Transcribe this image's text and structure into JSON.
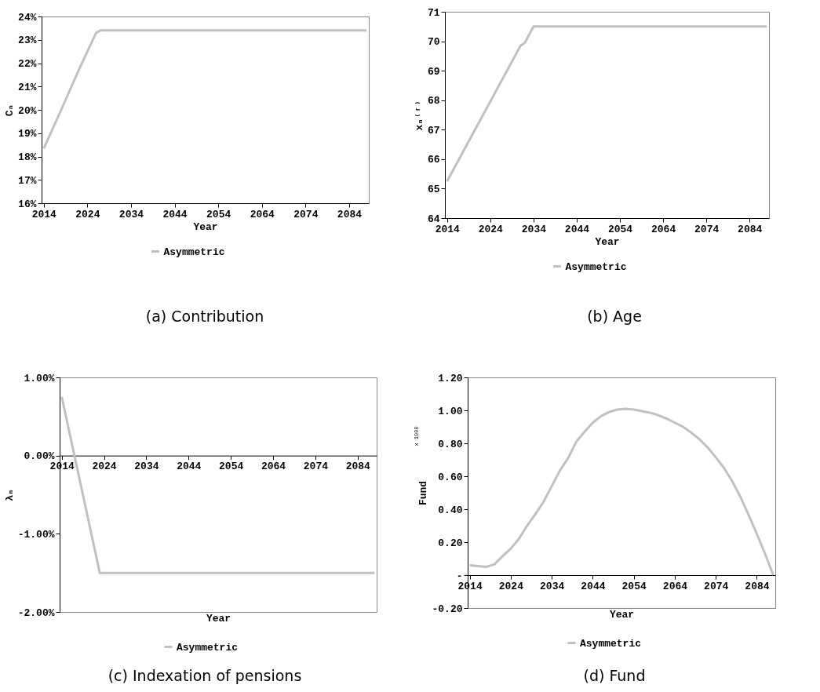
{
  "chart_data": [
    {
      "type": "line",
      "title": "(a) Contribution",
      "xlabel": "Year",
      "ylabel": "Cₙ",
      "legend": "bottom",
      "grid": false,
      "marker": "none",
      "line_style": "solid",
      "xlim": [
        2013.5,
        2088.5
      ],
      "xticks": [
        2014,
        2024,
        2034,
        2044,
        2054,
        2064,
        2074,
        2084
      ],
      "ylim": [
        16,
        24
      ],
      "yticks": [
        {
          "value": 16,
          "label": "16%"
        },
        {
          "value": 17,
          "label": "17%"
        },
        {
          "value": 18,
          "label": "18%"
        },
        {
          "value": 19,
          "label": "19%"
        },
        {
          "value": 20,
          "label": "20%"
        },
        {
          "value": 21,
          "label": "21%"
        },
        {
          "value": 22,
          "label": "22%"
        },
        {
          "value": 23,
          "label": "23%"
        },
        {
          "value": 24,
          "label": "24%"
        }
      ],
      "series": [
        {
          "name": "Asymmetric",
          "color": "#c0c0c0",
          "x": [
            2014,
            2018,
            2022,
            2026,
            2027,
            2088
          ],
          "values": [
            18.35,
            20.0,
            21.7,
            23.3,
            23.4,
            23.4
          ]
        }
      ]
    },
    {
      "type": "line",
      "title": "(b) Age",
      "xlabel": "Year",
      "ylabel": "xₙ⁽ʳ⁾",
      "legend": "bottom",
      "grid": false,
      "marker": "none",
      "line_style": "solid",
      "xlim": [
        2013.5,
        2088.5
      ],
      "xticks": [
        2014,
        2024,
        2034,
        2044,
        2054,
        2064,
        2074,
        2084
      ],
      "ylim": [
        64,
        71
      ],
      "yticks": [
        64,
        65,
        66,
        67,
        68,
        69,
        70,
        71
      ],
      "series": [
        {
          "name": "Asymmetric",
          "color": "#c0c0c0",
          "x": [
            2014,
            2031,
            2032,
            2034,
            2088
          ],
          "values": [
            65.25,
            69.85,
            69.95,
            70.5,
            70.5
          ]
        }
      ]
    },
    {
      "type": "line",
      "title": "(c) Indexation of pensions",
      "xlabel": "Year",
      "ylabel": "λₙ",
      "legend": "bottom",
      "grid": false,
      "marker": "none",
      "line_style": "solid",
      "xlim": [
        2013.5,
        2088.5
      ],
      "xticks": [
        2014,
        2024,
        2034,
        2044,
        2054,
        2064,
        2074,
        2084
      ],
      "ylim": [
        -2,
        1
      ],
      "yticks": [
        {
          "value": -2,
          "label": "-2.00%"
        },
        {
          "value": -1,
          "label": "-1.00%"
        },
        {
          "value": 0,
          "label": "0.00%"
        },
        {
          "value": 1,
          "label": "1.00%"
        }
      ],
      "series": [
        {
          "name": "Asymmetric",
          "color": "#c0c0c0",
          "x": [
            2014,
            2023,
            2088
          ],
          "values": [
            0.75,
            -1.5,
            -1.5
          ]
        }
      ]
    },
    {
      "type": "line",
      "title": "(d) Fund",
      "xlabel": "Year",
      "ylabel": "Fund",
      "annotations": [
        "x 1000"
      ],
      "legend": "bottom",
      "grid": false,
      "marker": "none",
      "line_style": "solid",
      "xlim": [
        2013.5,
        2088.5
      ],
      "xticks": [
        2014,
        2024,
        2034,
        2044,
        2054,
        2064,
        2074,
        2084
      ],
      "ylim": [
        -0.2,
        1.2
      ],
      "yticks": [
        {
          "value": -0.2,
          "label": "-0.20"
        },
        {
          "value": 0,
          "label": "-"
        },
        {
          "value": 0.2,
          "label": "0.20"
        },
        {
          "value": 0.4,
          "label": "0.40"
        },
        {
          "value": 0.6,
          "label": "0.60"
        },
        {
          "value": 0.8,
          "label": "0.80"
        },
        {
          "value": 1,
          "label": "1.00"
        },
        {
          "value": 1.2,
          "label": "1.20"
        }
      ],
      "series": [
        {
          "name": "Asymmetric",
          "color": "#c0c0c0",
          "x": [
            2014,
            2018,
            2020,
            2022,
            2024,
            2026,
            2028,
            2030,
            2032,
            2034,
            2036,
            2038,
            2040,
            2042,
            2044,
            2046,
            2048,
            2050,
            2052,
            2054,
            2056,
            2058,
            2060,
            2062,
            2064,
            2066,
            2068,
            2070,
            2072,
            2074,
            2076,
            2078,
            2080,
            2082,
            2084,
            2086,
            2088
          ],
          "values": [
            0.06,
            0.05,
            0.065,
            0.115,
            0.16,
            0.22,
            0.3,
            0.37,
            0.445,
            0.54,
            0.635,
            0.71,
            0.81,
            0.87,
            0.925,
            0.965,
            0.99,
            1.005,
            1.01,
            1.005,
            0.995,
            0.985,
            0.97,
            0.95,
            0.925,
            0.9,
            0.865,
            0.825,
            0.775,
            0.715,
            0.65,
            0.57,
            0.475,
            0.365,
            0.25,
            0.13,
            0.0
          ]
        }
      ]
    }
  ]
}
